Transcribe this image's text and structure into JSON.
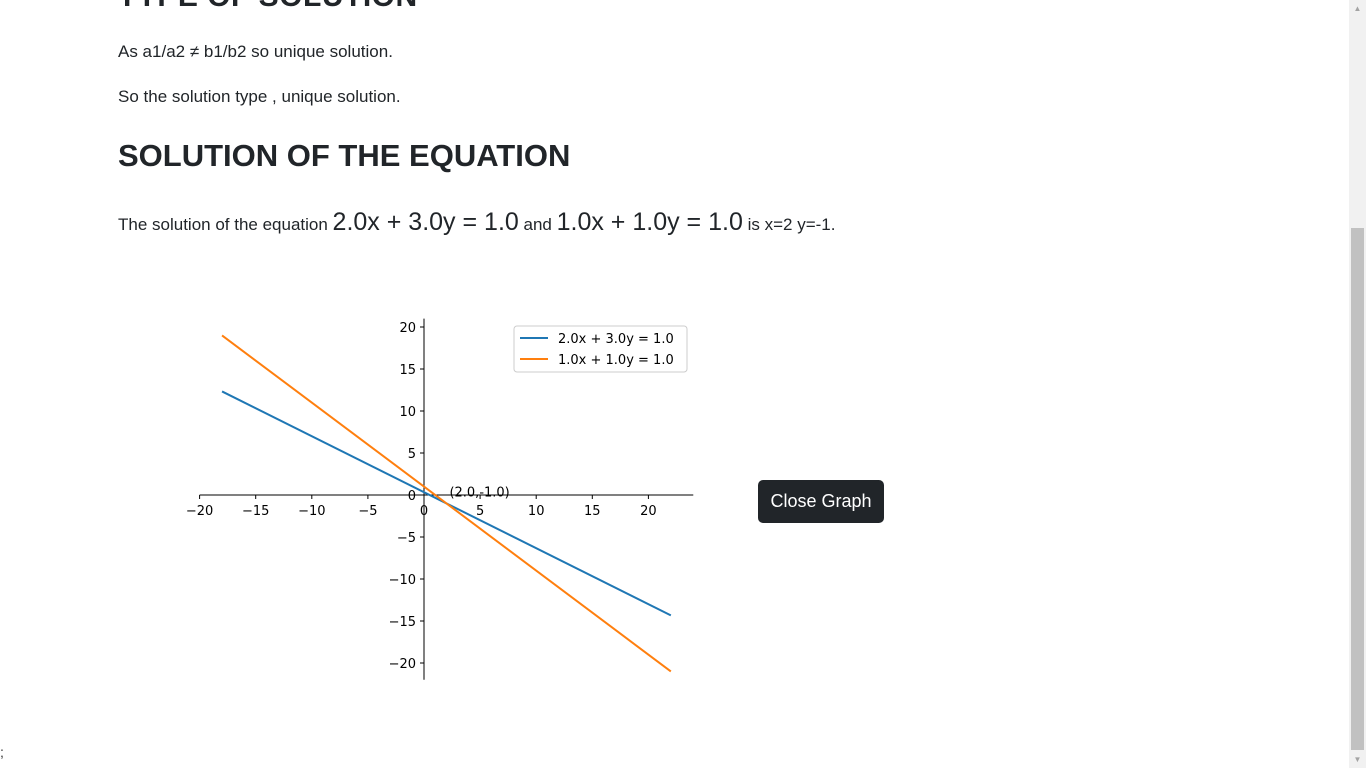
{
  "page": {
    "clipped_heading": "TYPE OF SOLUTION",
    "para1": "As a1/a2 ≠ b1/b2 so unique solution.",
    "para2": "So the solution type , unique solution.",
    "heading": "SOLUTION OF THE EQUATION",
    "solution": {
      "prefix": "The solution of the equation ",
      "eq1": "2.0x + 3.0y = 1.0",
      "and": " and ",
      "eq2": "1.0x + 1.0y = 1.0",
      "suffix": " is x=2 y=-1."
    },
    "close_button": "Close Graph",
    "stray_text": ";"
  },
  "chart_data": {
    "type": "line",
    "series": [
      {
        "name": "2.0x + 3.0y = 1.0",
        "color": "#1f77b4",
        "x": [
          -18,
          22
        ],
        "y": [
          12.33,
          -14.33
        ]
      },
      {
        "name": "1.0x + 1.0y = 1.0",
        "color": "#ff7f0e",
        "x": [
          -18,
          22
        ],
        "y": [
          19,
          -21
        ]
      }
    ],
    "xlim": [
      -20,
      24
    ],
    "ylim": [
      -22,
      21
    ],
    "xticks": [
      -20,
      -15,
      -10,
      -5,
      0,
      5,
      10,
      15,
      20
    ],
    "yticks": [
      -20,
      -15,
      -10,
      -5,
      0,
      5,
      10,
      15,
      20
    ],
    "annotation": {
      "text": "(2.0,-1.0)",
      "x": 2,
      "y": -1
    },
    "legend_position": "top-right",
    "grid": false
  }
}
